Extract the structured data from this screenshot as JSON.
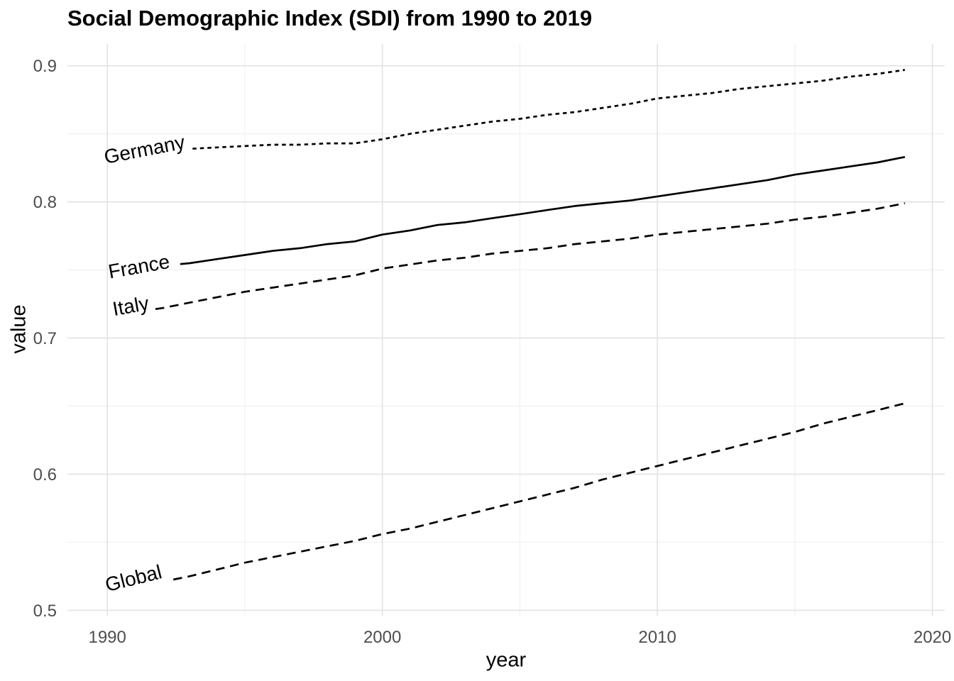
{
  "title": "Social Demographic Index (SDI) from 1990 to 2019",
  "style": {
    "background_color": "#ffffff",
    "line_color": "#000000",
    "tick_label_color": "#4d4d4d",
    "grid_major_color": "#e3e3e3",
    "grid_minor_color": "#efefef"
  },
  "chart_data": {
    "type": "line",
    "title": "Social Demographic Index (SDI) from 1990 to 2019",
    "xlabel": "year",
    "ylabel": "value",
    "grid": true,
    "legend": "inline-path-labels",
    "xlim": [
      1988.55,
      2020.45
    ],
    "ylim": [
      0.496,
      0.916
    ],
    "x_ticks": [
      1990,
      2000,
      2010,
      2020
    ],
    "x_minor_ticks": [
      1995,
      2005,
      2015
    ],
    "y_ticks": [
      0.5,
      0.6,
      0.7,
      0.8,
      0.9
    ],
    "y_minor_ticks": [
      0.55,
      0.65,
      0.75,
      0.85
    ],
    "x": [
      1990,
      1991,
      1992,
      1993,
      1994,
      1995,
      1996,
      1997,
      1998,
      1999,
      2000,
      2001,
      2002,
      2003,
      2004,
      2005,
      2006,
      2007,
      2008,
      2009,
      2010,
      2011,
      2012,
      2013,
      2014,
      2015,
      2016,
      2017,
      2018,
      2019
    ],
    "series": [
      {
        "name": "Germany",
        "linetype": "dotted",
        "color": "#000000",
        "line_from": 1993.1,
        "label_x": 1991.35,
        "label_y": 0.8385,
        "label_angle": -11,
        "values": [
          0.836,
          0.837,
          0.838,
          0.839,
          0.84,
          0.841,
          0.842,
          0.842,
          0.843,
          0.843,
          0.846,
          0.85,
          0.853,
          0.856,
          0.859,
          0.861,
          0.864,
          0.866,
          0.869,
          0.872,
          0.876,
          0.878,
          0.88,
          0.883,
          0.885,
          0.887,
          0.889,
          0.892,
          0.894,
          0.897
        ]
      },
      {
        "name": "France",
        "linetype": "solid",
        "color": "#000000",
        "line_from": 1992.65,
        "label_x": 1991.15,
        "label_y": 0.7525,
        "label_angle": -10,
        "values": [
          0.748,
          0.75,
          0.753,
          0.755,
          0.758,
          0.761,
          0.764,
          0.766,
          0.769,
          0.771,
          0.776,
          0.779,
          0.783,
          0.785,
          0.788,
          0.791,
          0.794,
          0.797,
          0.799,
          0.801,
          0.804,
          0.807,
          0.81,
          0.813,
          0.816,
          0.82,
          0.823,
          0.826,
          0.829,
          0.833
        ]
      },
      {
        "name": "Italy",
        "linetype": "dashed",
        "color": "#000000",
        "line_from": 1991.75,
        "label_x": 1990.85,
        "label_y": 0.7235,
        "label_angle": -10,
        "values": [
          0.716,
          0.719,
          0.722,
          0.726,
          0.73,
          0.734,
          0.737,
          0.74,
          0.743,
          0.746,
          0.751,
          0.754,
          0.757,
          0.759,
          0.762,
          0.764,
          0.766,
          0.769,
          0.771,
          0.773,
          0.776,
          0.778,
          0.78,
          0.782,
          0.784,
          0.787,
          0.789,
          0.792,
          0.795,
          0.799
        ]
      },
      {
        "name": "Global",
        "linetype": "dashed",
        "color": "#000000",
        "line_from": 1992.4,
        "label_x": 1990.95,
        "label_y": 0.5235,
        "label_angle": -14,
        "values": [
          0.513,
          0.517,
          0.521,
          0.525,
          0.53,
          0.535,
          0.539,
          0.543,
          0.547,
          0.551,
          0.556,
          0.56,
          0.565,
          0.57,
          0.575,
          0.58,
          0.585,
          0.59,
          0.596,
          0.601,
          0.606,
          0.611,
          0.616,
          0.621,
          0.626,
          0.631,
          0.637,
          0.642,
          0.647,
          0.652
        ]
      }
    ]
  }
}
